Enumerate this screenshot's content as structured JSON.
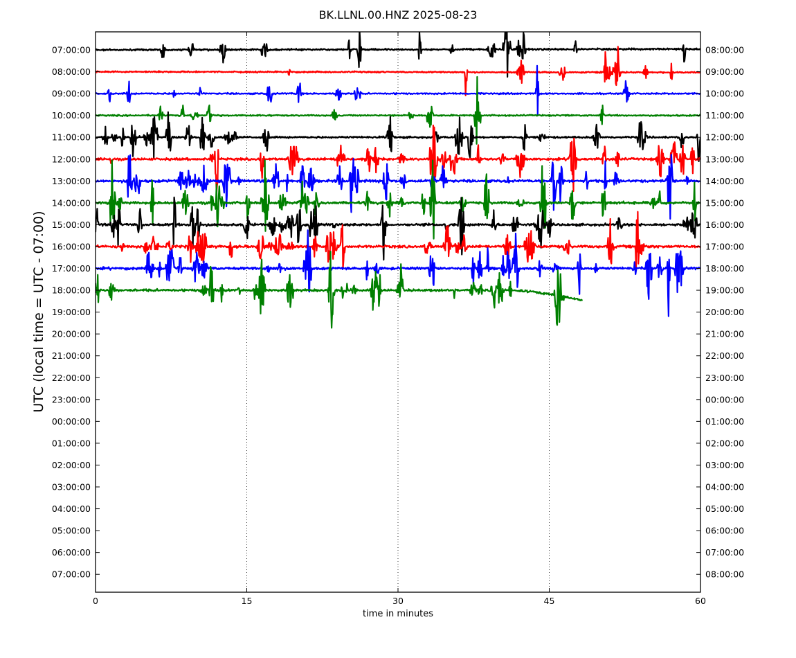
{
  "chart_data": {
    "type": "line",
    "title": "BK.LLNL.00.HNZ 2025-08-23",
    "xlabel": "time in minutes",
    "ylabel": "UTC (local time = UTC - 07:00)",
    "xlim": [
      0,
      60
    ],
    "xticks": [
      "0",
      "15",
      "30",
      "45",
      "60"
    ],
    "xgrid_minutes": [
      15,
      30,
      45
    ],
    "grid": "vertical dotted lines at 15, 30, 45",
    "left_tick_labels": [
      "07:00:00",
      "08:00:00",
      "09:00:00",
      "10:00:00",
      "11:00:00",
      "12:00:00",
      "13:00:00",
      "14:00:00",
      "15:00:00",
      "16:00:00",
      "17:00:00",
      "18:00:00",
      "19:00:00",
      "20:00:00",
      "21:00:00",
      "22:00:00",
      "23:00:00",
      "00:00:00",
      "01:00:00",
      "02:00:00",
      "03:00:00",
      "04:00:00",
      "05:00:00",
      "06:00:00",
      "07:00:00"
    ],
    "right_tick_labels": [
      "08:00:00",
      "09:00:00",
      "10:00:00",
      "11:00:00",
      "12:00:00",
      "13:00:00",
      "14:00:00",
      "15:00:00",
      "16:00:00",
      "17:00:00",
      "18:00:00",
      "19:00:00",
      "20:00:00",
      "21:00:00",
      "22:00:00",
      "23:00:00",
      "00:00:00",
      "01:00:00",
      "02:00:00",
      "03:00:00",
      "04:00:00",
      "05:00:00",
      "06:00:00",
      "07:00:00",
      "08:00:00"
    ],
    "color_cycle": [
      "#000000",
      "#ff0000",
      "#0000ff",
      "#008000"
    ],
    "traces": [
      {
        "row": 0,
        "color": "#000000",
        "end_minute": 60,
        "noise": 0.22,
        "drift": -0.12,
        "spike_count": 14
      },
      {
        "row": 1,
        "color": "#ff0000",
        "end_minute": 60,
        "noise": 0.18,
        "drift": 0.1,
        "spike_count": 10
      },
      {
        "row": 2,
        "color": "#0000ff",
        "end_minute": 60,
        "noise": 0.18,
        "drift": 0.0,
        "spike_count": 10
      },
      {
        "row": 3,
        "color": "#008000",
        "end_minute": 60,
        "noise": 0.18,
        "drift": 0.0,
        "spike_count": 10
      },
      {
        "row": 4,
        "color": "#000000",
        "end_minute": 60,
        "noise": 0.24,
        "drift": 0.0,
        "spike_count": 28
      },
      {
        "row": 5,
        "color": "#ff0000",
        "end_minute": 60,
        "noise": 0.3,
        "drift": 0.0,
        "spike_count": 30
      },
      {
        "row": 6,
        "color": "#0000ff",
        "end_minute": 60,
        "noise": 0.32,
        "drift": 0.0,
        "spike_count": 32
      },
      {
        "row": 7,
        "color": "#008000",
        "end_minute": 60,
        "noise": 0.32,
        "drift": 0.0,
        "spike_count": 30
      },
      {
        "row": 8,
        "color": "#000000",
        "end_minute": 60,
        "noise": 0.3,
        "drift": 0.0,
        "spike_count": 30
      },
      {
        "row": 9,
        "color": "#ff0000",
        "end_minute": 60,
        "noise": 0.32,
        "drift": 0.0,
        "spike_count": 32
      },
      {
        "row": 10,
        "color": "#0000ff",
        "end_minute": 60,
        "noise": 0.32,
        "drift": 0.0,
        "spike_count": 32
      },
      {
        "row": 11,
        "color": "#008000",
        "end_minute": 48.3,
        "noise": 0.3,
        "drift": 1.2,
        "spike_count": 30
      }
    ]
  }
}
